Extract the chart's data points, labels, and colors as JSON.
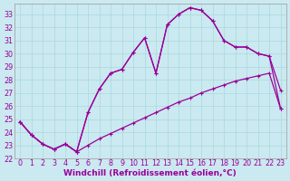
{
  "xlabel": "Windchill (Refroidissement éolien,°C)",
  "background_color": "#cbe9f0",
  "line_color": "#990099",
  "xlim": [
    -0.5,
    23.5
  ],
  "ylim": [
    22,
    33.8
  ],
  "xticks": [
    0,
    1,
    2,
    3,
    4,
    5,
    6,
    7,
    8,
    9,
    10,
    11,
    12,
    13,
    14,
    15,
    16,
    17,
    18,
    19,
    20,
    21,
    22,
    23
  ],
  "yticks": [
    22,
    23,
    24,
    25,
    26,
    27,
    28,
    29,
    30,
    31,
    32,
    33
  ],
  "line1_x": [
    0,
    1,
    2,
    3,
    4,
    5,
    6,
    7,
    8,
    9,
    10,
    11,
    12,
    13,
    14,
    15,
    16,
    17,
    18,
    19,
    20,
    21,
    22,
    23
  ],
  "line1_y": [
    24.8,
    23.8,
    23.1,
    22.7,
    23.1,
    22.5,
    23.0,
    23.5,
    23.9,
    24.3,
    24.7,
    25.1,
    25.5,
    25.9,
    26.3,
    26.6,
    27.0,
    27.3,
    27.6,
    27.9,
    28.1,
    28.3,
    28.5,
    25.8
  ],
  "line2_x": [
    0,
    1,
    2,
    3,
    4,
    5,
    6,
    7,
    8,
    9,
    10,
    11,
    12,
    13,
    14,
    15,
    16,
    17,
    18,
    19,
    20,
    21,
    22,
    23
  ],
  "line2_y": [
    24.8,
    23.8,
    23.1,
    22.7,
    23.1,
    22.5,
    25.5,
    27.3,
    28.5,
    28.8,
    30.1,
    31.2,
    28.5,
    32.2,
    33.0,
    33.5,
    33.3,
    32.5,
    31.0,
    30.5,
    30.5,
    30.0,
    29.8,
    27.2
  ],
  "line3_x": [
    0,
    1,
    2,
    3,
    4,
    5,
    6,
    7,
    8,
    9,
    10,
    11,
    12,
    13,
    14,
    15,
    16,
    17,
    18,
    19,
    20,
    21,
    22,
    23
  ],
  "line3_y": [
    24.8,
    23.8,
    23.1,
    22.7,
    23.1,
    22.5,
    25.5,
    27.3,
    28.5,
    28.8,
    30.1,
    31.2,
    28.5,
    32.2,
    33.0,
    33.5,
    33.3,
    32.5,
    31.0,
    30.5,
    30.5,
    30.0,
    29.8,
    25.8
  ],
  "grid_color": "#a8d8df",
  "fontsize_xlabel": 6.5,
  "fontsize_tick": 5.8
}
